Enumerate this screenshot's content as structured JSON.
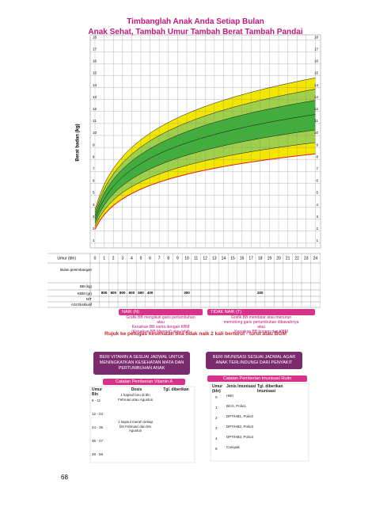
{
  "header": {
    "title": "Timbanglah Anak Anda Setiap Bulan",
    "subtitle": "Anak Sehat, Tambah Umur  Tambah Berat  Tambah Pandai"
  },
  "growth_chart": {
    "y_axis_label": "Berat badan (kg)",
    "y_ticks": [
      1,
      2,
      3,
      4,
      5,
      6,
      7,
      8,
      9,
      10,
      11,
      12,
      13,
      14,
      15,
      16,
      17,
      18
    ],
    "x_axis_label": "Umur (bln)",
    "x_ticks": [
      0,
      1,
      2,
      3,
      4,
      5,
      6,
      7,
      8,
      9,
      10,
      11,
      12,
      13,
      14,
      15,
      16,
      17,
      18,
      19,
      20,
      21,
      22,
      23,
      24
    ]
  },
  "monitoring_rows": {
    "labels": [
      "Bulan penimbangan",
      "BB (kg)",
      "KBM (gr)",
      "N/T",
      "ASI Eksklusif"
    ],
    "kbm_values": [
      800,
      900,
      800,
      600,
      500,
      400,
      300,
      200
    ]
  },
  "legend_boxes": [
    {
      "title": "NAIK (N)",
      "lines": [
        "Grafik BB mengikuti garis pertumbuhan",
        "atau",
        "Kenaikan BB sama dengan KBM",
        "(Kenaikan BB Minimal) atau lebih"
      ]
    },
    {
      "title": "TIDAK NAIK (T)",
      "lines": [
        "Grafik BB mendatar atau menurun",
        "memotong garis pertumbuhan dibawahnya",
        "atau",
        "Kenaikan BB kurang dari KBM"
      ]
    }
  ],
  "referral_note": "Rujuk ke petugas kesehatan bila tidak naik 2 kali berturut - turut atau BGM",
  "banners": [
    "BERI VITAMIN A SESUAI JADWAL UNTUK MENINGKATKAN KESEHATAN MATA DAN PERTUMBUHAN ANAK",
    "BERI IMUNISASI SESUAI JADWAL AGAR ANAK TERLINDUNGI DARI PENYAKIT"
  ],
  "vitamin_table": {
    "title": "Catatan Pemberian Vitamin A",
    "columns": [
      "Umur Bln",
      "Dosis",
      "Tgl. diberikan"
    ],
    "ages": [
      "6 - 11",
      "12 - 23",
      "24 - 35",
      "36 - 47",
      "48 - 59"
    ],
    "doses": [
      "1 kapsul biru di bln Februari atau Agustus",
      "1 kapsul merah setiap bln Februari dan bln Agustus"
    ]
  },
  "immunization_table": {
    "title": "Catatan Pemberian Imunisasi Rutin",
    "columns": [
      "Umur (bln)",
      "Jenis Imunisasi",
      "Tgl. diberikan Imunisasi"
    ],
    "ages": [
      "0",
      "1",
      "2",
      "3",
      "4",
      "9"
    ],
    "vaccines": [
      "HB0",
      "BCG, Polio1",
      "DPT/HB1, Polio2",
      "DPT/HB2, Polio3",
      "DPT/HB3, Polio4",
      "Campak"
    ]
  },
  "page_number": "68"
}
